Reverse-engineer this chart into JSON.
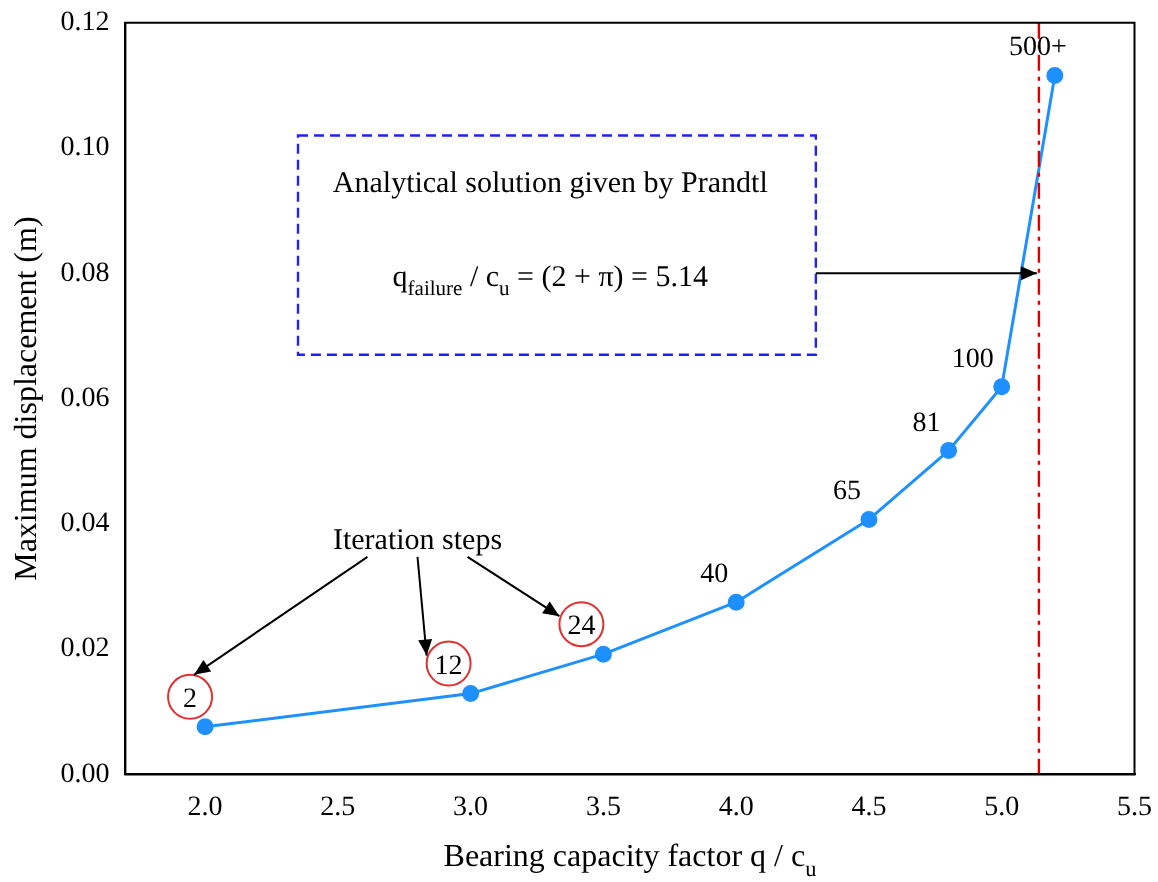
{
  "chart_data": {
    "type": "line",
    "xlabel": "Bearing capacity factor q / c$_{u}$",
    "ylabel": "Maximum displacement (m)",
    "x": [
      2.0,
      3.0,
      3.5,
      4.0,
      4.5,
      4.8,
      5.0,
      5.2
    ],
    "series": [
      {
        "color": "#1e90ff",
        "values": [
          0.0076,
          0.0129,
          0.0192,
          0.0275,
          0.0407,
          0.0517,
          0.0619,
          0.1116
        ]
      }
    ],
    "xlim": [
      1.7,
      5.5
    ],
    "xticks": [
      {
        "value": 2.0,
        "label": "2.0"
      },
      {
        "value": 2.5,
        "label": "2.5"
      },
      {
        "value": 3.0,
        "label": "3.0"
      },
      {
        "value": 3.5,
        "label": "3.5"
      },
      {
        "value": 4.0,
        "label": "4.0"
      },
      {
        "value": 4.5,
        "label": "4.5"
      },
      {
        "value": 5.0,
        "label": "5.0"
      },
      {
        "value": 5.5,
        "label": "5.5"
      }
    ],
    "ylim": [
      0,
      0.12
    ],
    "yticks": [
      {
        "value": 0,
        "label": "0.00"
      },
      {
        "value": 0.02,
        "label": "0.02"
      },
      {
        "value": 0.04,
        "label": "0.04"
      },
      {
        "value": 0.06,
        "label": "0.06"
      },
      {
        "value": 0.08,
        "label": "0.08"
      },
      {
        "value": 0.1,
        "label": "0.10"
      },
      {
        "value": 0.12,
        "label": "0.12"
      }
    ],
    "ref_lines": [
      {
        "axis": "x",
        "value": 5.14,
        "color": "#e00000",
        "line_style": "dashed"
      }
    ],
    "annotations": [
      "Iteration steps",
      "Analytical solution given by Prandtl",
      "q$_{failure}$ / c$_{u}$ = (2 + π) = 5.14",
      {
        "text": "2",
        "x": 2.0,
        "y": 0.0076
      },
      {
        "text": "12",
        "x": 3.0,
        "y": 0.0129
      },
      {
        "text": "24",
        "x": 3.5,
        "y": 0.0192
      },
      {
        "text": "40",
        "x": 4.0,
        "y": 0.0275
      },
      {
        "text": "65",
        "x": 4.5,
        "y": 0.0407
      },
      {
        "text": "81",
        "x": 4.8,
        "y": 0.0517
      },
      {
        "text": "100",
        "x": 5.0,
        "y": 0.0619
      },
      {
        "text": "500+",
        "x": 5.2,
        "y": 0.1116
      }
    ],
    "marker": "circle",
    "line_style": "solid",
    "grid": false,
    "legend": false
  }
}
